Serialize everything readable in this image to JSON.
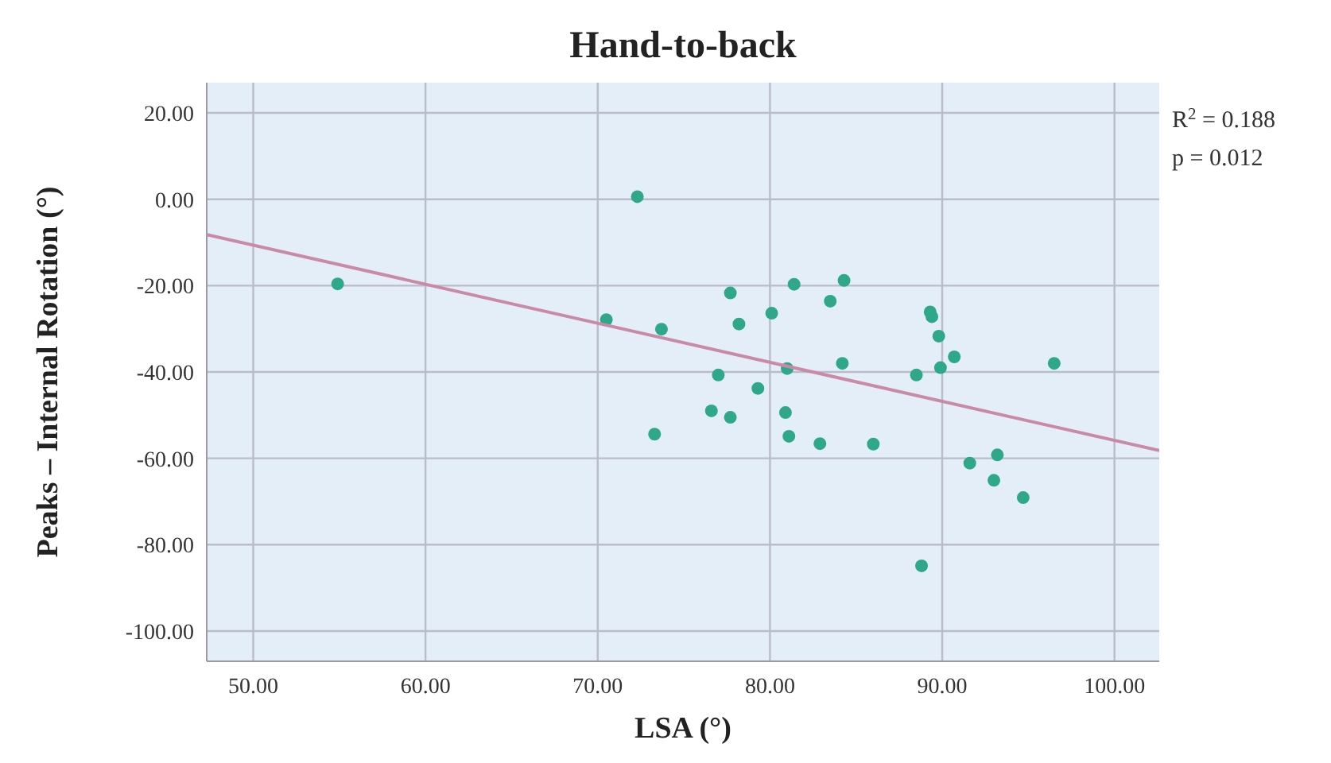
{
  "chart_data": {
    "type": "scatter",
    "title": "Hand-to-back",
    "xlabel": "LSA (°)",
    "ylabel": "Peaks – Internal Rotation (°)",
    "xlim": [
      47.3,
      102.6
    ],
    "ylim": [
      -107,
      27
    ],
    "xticks": [
      {
        "value": 50,
        "label": "50.00"
      },
      {
        "value": 60,
        "label": "60.00"
      },
      {
        "value": 70,
        "label": "70.00"
      },
      {
        "value": 80,
        "label": "80.00"
      },
      {
        "value": 90,
        "label": "90.00"
      },
      {
        "value": 100,
        "label": "100.00"
      }
    ],
    "yticks": [
      {
        "value": 20,
        "label": "20.00"
      },
      {
        "value": 0,
        "label": "0.00"
      },
      {
        "value": -20,
        "label": "-20.00"
      },
      {
        "value": -40,
        "label": "-40.00"
      },
      {
        "value": -60,
        "label": "-60.00"
      },
      {
        "value": -80,
        "label": "-80.00"
      },
      {
        "value": -100,
        "label": "-100.00"
      }
    ],
    "grid": true,
    "marker": "circle",
    "annotations": [
      "R$^{2}$ = 0.188",
      "p = 0.012"
    ],
    "series": [
      {
        "color": "#2fa88a",
        "x": [
          54.9,
          72.3,
          70.5,
          73.7,
          73.3,
          77.7,
          78.2,
          80.1,
          81.4,
          83.5,
          84.3,
          77.0,
          79.3,
          81.0,
          84.2,
          76.6,
          77.7,
          80.9,
          81.1,
          82.9,
          86.0,
          88.5,
          89.3,
          89.4,
          89.8,
          89.9,
          90.7,
          96.5,
          91.6,
          93.2,
          93.0,
          94.7,
          88.8
        ],
        "values": [
          -19.6,
          0.6,
          -27.9,
          -30.1,
          -54.4,
          -21.7,
          -28.9,
          -26.4,
          -19.7,
          -23.6,
          -18.8,
          -40.7,
          -43.8,
          -39.2,
          -38.0,
          -49.0,
          -50.5,
          -49.4,
          -54.9,
          -56.6,
          -56.7,
          -40.7,
          -26.1,
          -27.2,
          -31.7,
          -39.0,
          -36.5,
          -38.0,
          -61.1,
          -59.2,
          -65.1,
          -69.1,
          -84.9
        ]
      },
      {
        "type": "line",
        "color": "#c98aa6",
        "x": [
          47.3,
          102.6
        ],
        "values": [
          -8.2,
          -58.2
        ],
        "marker": "none"
      }
    ]
  }
}
